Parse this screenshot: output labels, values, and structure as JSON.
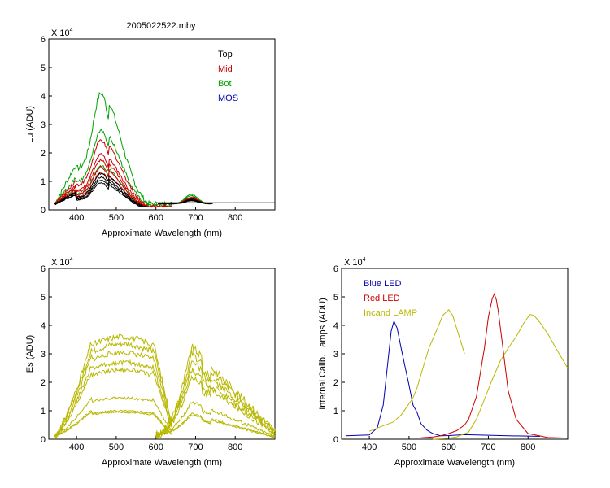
{
  "figure": {
    "title": "2005022522.mby"
  },
  "chart_data": [
    {
      "type": "line",
      "id": "lu",
      "title": "2005022522.mby",
      "xlabel": "Approximate Wavelength (nm)",
      "ylabel": "Lu (ADU)",
      "yexp": "X 10",
      "yexp_power": "4",
      "xlim": [
        330,
        900
      ],
      "ylim": [
        0,
        6
      ],
      "xticks": [
        400,
        500,
        600,
        700,
        800
      ],
      "yticks": [
        0,
        1,
        2,
        3,
        4,
        5,
        6
      ],
      "legend": {
        "placement": "top-right",
        "entries": [
          {
            "name": "Top",
            "color": "#000000"
          },
          {
            "name": "Mid",
            "color": "#cc0000"
          },
          {
            "name": "Bot",
            "color": "#00a000"
          },
          {
            "name": "MOS",
            "color": "#0000b0"
          }
        ]
      },
      "series": [
        {
          "name": "Bot",
          "color": "#00a000",
          "peaks": [
            4.1,
            2.8,
            1.55
          ],
          "tail": [
            0.55,
            0.5,
            0.42
          ]
        },
        {
          "name": "Mid",
          "color": "#cc0000",
          "peaks": [
            2.45,
            1.95,
            1.75,
            1.5,
            1.3
          ],
          "tail": [
            0.45,
            0.4,
            0.38,
            0.35,
            0.33
          ]
        },
        {
          "name": "Top",
          "color": "#000000",
          "peaks": [
            1.28,
            1.15,
            1.05,
            0.95
          ],
          "tail": [
            0.38,
            0.36,
            0.34,
            0.32
          ]
        }
      ],
      "flat_level": 0.25
    },
    {
      "type": "line",
      "id": "es",
      "title": "",
      "xlabel": "Approximate Wavelength (nm)",
      "ylabel": "Es (ADU)",
      "yexp": "X 10",
      "yexp_power": "4",
      "xlim": [
        330,
        900
      ],
      "ylim": [
        0,
        6
      ],
      "xticks": [
        400,
        500,
        600,
        700,
        800
      ],
      "yticks": [
        0,
        1,
        2,
        3,
        4,
        5,
        6
      ],
      "color": "#b8b800",
      "levels": [
        3.6,
        3.35,
        3.05,
        2.7,
        2.45,
        1.45,
        1.0,
        0.95
      ]
    },
    {
      "type": "line",
      "id": "cal",
      "title": "",
      "xlabel": "Approximate Wavelength (nm)",
      "ylabel": "Internal Calib. Lamps (ADU)",
      "yexp": "X 10",
      "yexp_power": "4",
      "xlim": [
        330,
        900
      ],
      "ylim": [
        0,
        6
      ],
      "xticks": [
        400,
        500,
        600,
        700,
        800
      ],
      "yticks": [
        0,
        1,
        2,
        3,
        4,
        5,
        6
      ],
      "legend": {
        "placement": "top-left",
        "entries": [
          {
            "name": "Blue LED",
            "color": "#0000b0"
          },
          {
            "name": "Red LED",
            "color": "#cc0000"
          },
          {
            "name": "Incand LAMP",
            "color": "#b8b800"
          }
        ]
      },
      "series": [
        {
          "name": "Blue LED",
          "color": "#0000b0",
          "x": [
            340,
            400,
            420,
            435,
            445,
            455,
            462,
            470,
            480,
            490,
            500,
            510,
            520,
            530,
            545,
            560,
            580,
            600,
            640,
            700,
            750,
            800,
            830
          ],
          "y": [
            0.12,
            0.15,
            0.4,
            1.2,
            2.5,
            3.8,
            4.15,
            3.9,
            3.2,
            2.55,
            1.9,
            1.2,
            0.95,
            0.55,
            0.32,
            0.2,
            0.12,
            0.13,
            0.16,
            0.14,
            0.12,
            0.11,
            0.1
          ]
        },
        {
          "name": "Red LED",
          "color": "#cc0000",
          "x": [
            530,
            560,
            580,
            600,
            620,
            640,
            650,
            670,
            690,
            700,
            710,
            715,
            720,
            725,
            735,
            750,
            770,
            800,
            850,
            900
          ],
          "y": [
            0.05,
            0.08,
            0.12,
            0.2,
            0.3,
            0.5,
            0.7,
            1.5,
            3.2,
            4.3,
            4.95,
            5.1,
            4.9,
            4.5,
            3.4,
            1.7,
            0.7,
            0.2,
            0.06,
            0.04
          ]
        },
        {
          "name": "Incand LAMP",
          "color": "#b8b800",
          "segments": [
            {
              "x": [
                400,
                430,
                460,
                480,
                495,
                510,
                520,
                535,
                550,
                570,
                585,
                600,
                610,
                620,
                630,
                640
              ],
              "y": [
                0.28,
                0.45,
                0.6,
                0.85,
                1.15,
                1.45,
                1.8,
                2.5,
                3.2,
                3.85,
                4.35,
                4.55,
                4.35,
                3.9,
                3.45,
                3.0
              ]
            },
            {
              "x": [
                560,
                590,
                620,
                650,
                670,
                690,
                710,
                730,
                750,
                770,
                790,
                805,
                815,
                830,
                850,
                870,
                900
              ],
              "y": [
                0.0,
                0.02,
                0.08,
                0.25,
                0.7,
                1.4,
                2.1,
                2.75,
                3.2,
                3.6,
                4.1,
                4.38,
                4.35,
                4.1,
                3.7,
                3.2,
                2.5
              ]
            }
          ]
        }
      ]
    }
  ]
}
